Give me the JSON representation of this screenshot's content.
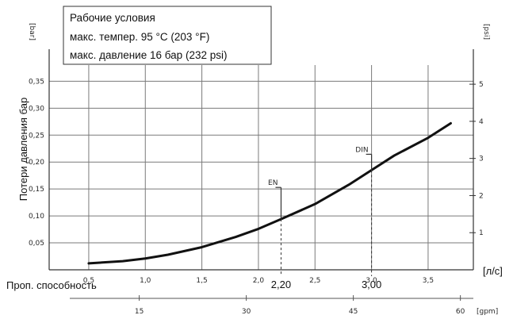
{
  "chart_data": {
    "type": "line",
    "info_box": {
      "line1": "Рабочие условия",
      "line2": "макс. темпер. 95 °C (203 °F)",
      "line3": "макс. давление 16 бар (232 psi)"
    },
    "ylabel": "Потери давления бар",
    "y_left_unit": "[bar]",
    "y_right_unit": "[psi]",
    "xlabel": "Проп. способность",
    "x_unit": "[л/с]",
    "x_secondary_unit": "[gpm]",
    "xlim": [
      0.15,
      3.9
    ],
    "ylim": [
      0,
      0.38
    ],
    "x_ticks": [
      "0,5",
      "1,0",
      "1,5",
      "2,0",
      "2,5",
      "3,0",
      "3,5"
    ],
    "x_tick_values": [
      0.5,
      1.0,
      1.5,
      2.0,
      2.5,
      3.0,
      3.5
    ],
    "y_left_ticks": [
      "0,05",
      "0,10",
      "0,15",
      "0,20",
      "0,25",
      "0,30",
      "0,35"
    ],
    "y_left_tick_values": [
      0.05,
      0.1,
      0.15,
      0.2,
      0.25,
      0.3,
      0.35
    ],
    "y_right_ticks": [
      "1",
      "2",
      "3",
      "4",
      "5"
    ],
    "y_right_tick_values": [
      1,
      2,
      3,
      4,
      5
    ],
    "gpm_ticks": [
      "15",
      "30",
      "45",
      "60"
    ],
    "gpm_tick_values": [
      15,
      30,
      45,
      60
    ],
    "grid": true,
    "series": [
      {
        "x": [
          0.5,
          0.8,
          1.0,
          1.2,
          1.5,
          1.8,
          2.0,
          2.2,
          2.5,
          2.8,
          3.0,
          3.2,
          3.5,
          3.7
        ],
        "values": [
          0.012,
          0.016,
          0.021,
          0.028,
          0.042,
          0.061,
          0.076,
          0.094,
          0.122,
          0.158,
          0.185,
          0.212,
          0.245,
          0.272
        ]
      }
    ],
    "markers": [
      {
        "label": "EN",
        "x": 2.2,
        "x_label": "2,20"
      },
      {
        "label": "DIN",
        "x": 3.0,
        "x_label": "3,00"
      }
    ]
  }
}
